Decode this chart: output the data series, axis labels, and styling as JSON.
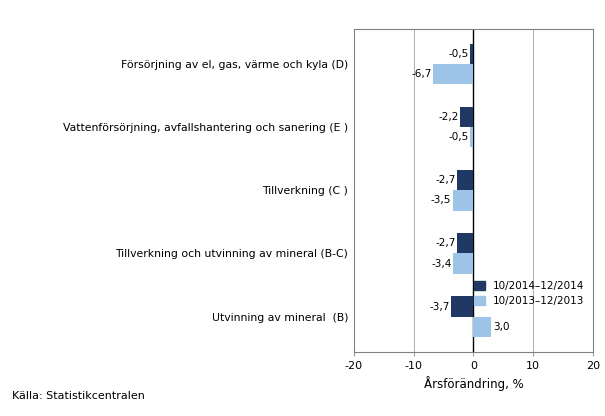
{
  "categories": [
    "Utvinning av mineral  (B)",
    "Tillverkning och utvinning av mineral (B-C)",
    "Tillverkning (C )",
    "Vattenförsörjning, avfallshantering och sanering (E )",
    "Försörjning av el, gas, värme och kyla (D)"
  ],
  "series1_values": [
    -3.7,
    -2.7,
    -2.7,
    -2.2,
    -0.5
  ],
  "series2_values": [
    3.0,
    -3.4,
    -3.5,
    -0.5,
    -6.7
  ],
  "series1_label": "10/2014–12/2014",
  "series2_label": "10/2013–12/2013",
  "series1_color": "#1F3864",
  "series2_color": "#9DC3E6",
  "xlabel": "Årsförändring, %",
  "xlim": [
    -20,
    20
  ],
  "xticks": [
    -20,
    -10,
    0,
    10,
    20
  ],
  "source": "Källa: Statistikcentralen",
  "bar_height": 0.32,
  "vline_color": "#A0A0A0",
  "background_color": "#ffffff"
}
